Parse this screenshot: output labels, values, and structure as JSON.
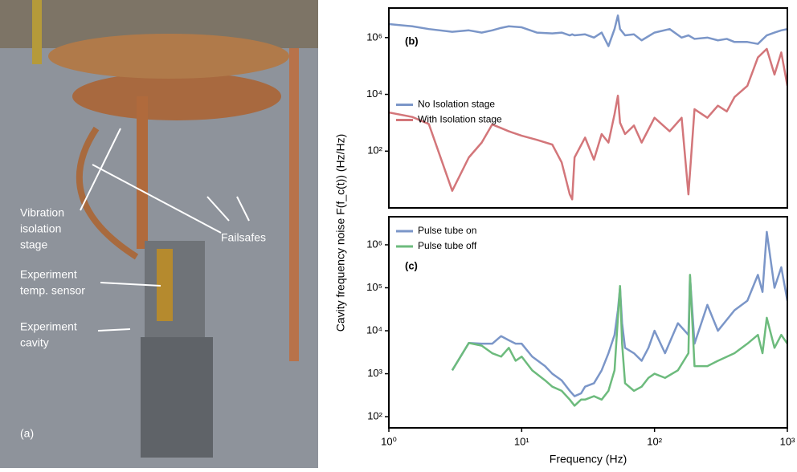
{
  "photo": {
    "panel_label": "(a)",
    "labels": [
      [
        "Vibration",
        "isolation",
        "stage"
      ],
      [
        "Failsafes"
      ],
      [
        "Experiment",
        "temp. sensor"
      ],
      [
        "Experiment",
        "cavity"
      ]
    ]
  },
  "shared_ylabel": "Cavity frequency noise F(f_c(t)) (Hz/Hz)",
  "chart_data": [
    {
      "type": "line",
      "panel_label": "(b)",
      "log_x": true,
      "log_y": true,
      "legend": "middle-left",
      "x": [
        1,
        1.5,
        2,
        3,
        4,
        5,
        6,
        7,
        8,
        10,
        13,
        17,
        20,
        23,
        24,
        25,
        30,
        35,
        40,
        45,
        50,
        53,
        55,
        60,
        70,
        80,
        100,
        130,
        160,
        180,
        200,
        250,
        300,
        350,
        400,
        500,
        600,
        700,
        800,
        900,
        1000
      ],
      "series": [
        {
          "name": "No Isolation stage",
          "color": "#7b96c8",
          "values": [
            3000000,
            2500000,
            2000000,
            1600000,
            1800000,
            1500000,
            1800000,
            2200000,
            2500000,
            2300000,
            1500000,
            1400000,
            1500000,
            1200000,
            1300000,
            1200000,
            1300000,
            1000000,
            1500000,
            500000,
            2000000,
            6000000,
            2000000,
            1200000,
            1300000,
            800000,
            1500000,
            2000000,
            1000000,
            1200000,
            900000,
            1000000,
            800000,
            900000,
            700000,
            700000,
            600000,
            1200000,
            1500000,
            1800000,
            2000000
          ]
        },
        {
          "name": "With Isolation stage",
          "color": "#d3767a",
          "values": [
            2300,
            1600,
            900,
            4,
            60,
            200,
            870,
            650,
            500,
            350,
            250,
            170,
            40,
            3,
            2,
            60,
            300,
            50,
            400,
            200,
            2000,
            9000,
            1000,
            400,
            800,
            200,
            1500,
            500,
            1500,
            3,
            3000,
            1500,
            4000,
            2500,
            8000,
            20000,
            200000,
            400000,
            50000,
            300000,
            20000
          ]
        }
      ],
      "xlim": [
        1,
        1000
      ],
      "ylim": [
        1,
        11000000
      ],
      "yticks": [
        {
          "value": 100,
          "label": "10²"
        },
        {
          "value": 10000,
          "label": "10⁴"
        },
        {
          "value": 1000000,
          "label": "10⁶"
        }
      ]
    },
    {
      "type": "line",
      "panel_label": "(c)",
      "log_x": true,
      "log_y": true,
      "legend": "upper-left",
      "xlabel": "Frequency (Hz)",
      "x": [
        3,
        4,
        5,
        6,
        7,
        8,
        9,
        10,
        12,
        15,
        17,
        20,
        23,
        25,
        28,
        30,
        35,
        40,
        45,
        50,
        53,
        55,
        57,
        60,
        70,
        80,
        90,
        100,
        120,
        150,
        180,
        185,
        200,
        250,
        300,
        400,
        500,
        600,
        650,
        700,
        800,
        900,
        1000
      ],
      "series": [
        {
          "name": "Pulse tube on",
          "color": "#7b96c8",
          "values": [
            1200,
            5200,
            5000,
            5000,
            7500,
            6000,
            5000,
            5000,
            2500,
            1500,
            1000,
            700,
            400,
            300,
            350,
            500,
            600,
            1200,
            3000,
            8000,
            30000,
            100000,
            15000,
            4000,
            3000,
            2000,
            4000,
            10000,
            3000,
            15000,
            8000,
            180000,
            5000,
            40000,
            10000,
            30000,
            50000,
            200000,
            80000,
            2000000,
            100000,
            300000,
            50000
          ]
        },
        {
          "name": "Pulse tube off",
          "color": "#6dbb7d",
          "values": [
            1200,
            5200,
            4500,
            3000,
            2500,
            4000,
            2000,
            2500,
            1200,
            700,
            500,
            400,
            250,
            180,
            250,
            250,
            300,
            250,
            400,
            1200,
            20000,
            110000,
            5000,
            600,
            400,
            500,
            800,
            1000,
            800,
            1200,
            3000,
            200000,
            1500,
            1500,
            2000,
            3000,
            5000,
            8000,
            3000,
            20000,
            4000,
            8000,
            5000
          ]
        }
      ],
      "xlim": [
        1,
        1000
      ],
      "ylim": [
        55,
        4500000
      ],
      "xticks": [
        {
          "value": 1,
          "label": "10⁰"
        },
        {
          "value": 10,
          "label": "10¹"
        },
        {
          "value": 100,
          "label": "10²"
        },
        {
          "value": 1000,
          "label": "10³"
        }
      ],
      "yticks": [
        {
          "value": 100,
          "label": "10²"
        },
        {
          "value": 1000,
          "label": "10³"
        },
        {
          "value": 10000,
          "label": "10⁴"
        },
        {
          "value": 100000,
          "label": "10⁵"
        },
        {
          "value": 1000000,
          "label": "10⁶"
        }
      ]
    }
  ]
}
